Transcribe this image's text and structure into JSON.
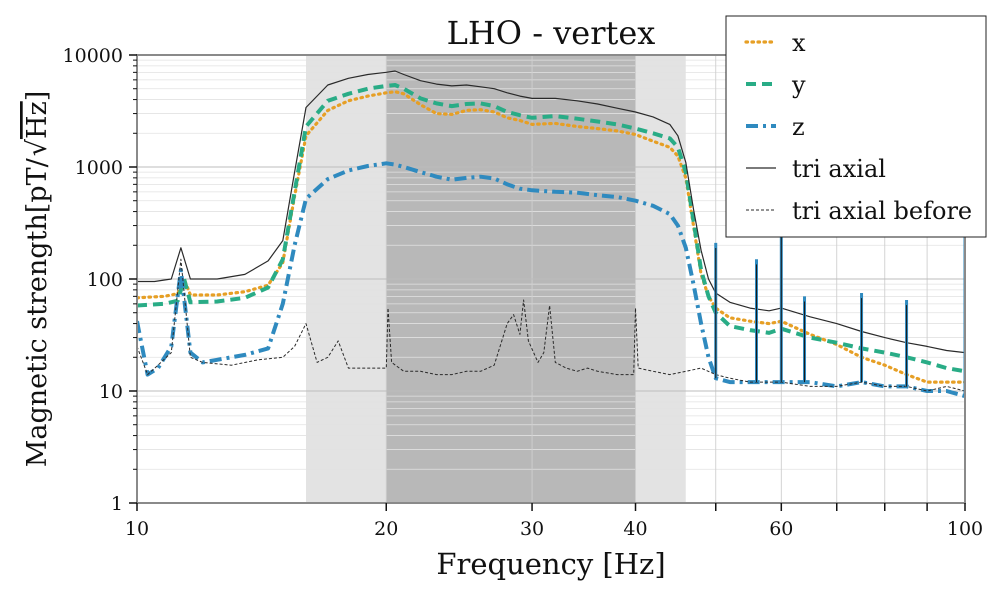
{
  "chart_data": {
    "type": "line",
    "title": "LHO - vertex",
    "xlabel": "Frequency [Hz]",
    "ylabel_prefix": "Magnetic strength[pT/",
    "ylabel_radicand": "Hz",
    "ylabel_suffix": "]",
    "xscale": "log",
    "yscale": "log",
    "xlim": [
      10,
      100
    ],
    "ylim": [
      1,
      10000
    ],
    "x_ticks": [
      {
        "value": 10,
        "label": "10"
      },
      {
        "value": 20,
        "label": "20"
      },
      {
        "value": 30,
        "label": "30"
      },
      {
        "value": 40,
        "label": "40"
      },
      {
        "value": 60,
        "label": "60"
      },
      {
        "value": 100,
        "label": "100"
      }
    ],
    "y_ticks": [
      {
        "value": 1,
        "label": "1"
      },
      {
        "value": 10,
        "label": "10"
      },
      {
        "value": 100,
        "label": "100"
      },
      {
        "value": 1000,
        "label": "1000"
      },
      {
        "value": 10000,
        "label": "10000"
      }
    ],
    "grid": true,
    "legend_position": "top-right",
    "shaded_bands": [
      {
        "from": 16,
        "to": 46,
        "shade": "light",
        "color": "#e3e3e3"
      },
      {
        "from": 20,
        "to": 40,
        "shade": "dark",
        "color": "#b8b8b8"
      }
    ],
    "series": [
      {
        "name": "x",
        "color": "#e69f25",
        "style": "dotted",
        "points": [
          [
            10,
            68
          ],
          [
            10.8,
            70
          ],
          [
            11.2,
            74
          ],
          [
            11.4,
            100
          ],
          [
            11.6,
            72
          ],
          [
            12.5,
            72
          ],
          [
            13.5,
            77
          ],
          [
            14.4,
            88
          ],
          [
            15,
            140
          ],
          [
            15.5,
            550
          ],
          [
            16,
            1900
          ],
          [
            17,
            3200
          ],
          [
            18,
            3900
          ],
          [
            19,
            4300
          ],
          [
            20,
            4600
          ],
          [
            20.5,
            4700
          ],
          [
            21,
            4500
          ],
          [
            22,
            3600
          ],
          [
            23,
            3000
          ],
          [
            24,
            2950
          ],
          [
            25,
            3200
          ],
          [
            26,
            3250
          ],
          [
            27,
            3100
          ],
          [
            28,
            2750
          ],
          [
            29,
            2600
          ],
          [
            30,
            2400
          ],
          [
            32,
            2450
          ],
          [
            34,
            2300
          ],
          [
            36,
            2200
          ],
          [
            38,
            2100
          ],
          [
            40,
            1950
          ],
          [
            42,
            1700
          ],
          [
            44,
            1500
          ],
          [
            45,
            1250
          ],
          [
            46,
            800
          ],
          [
            47,
            300
          ],
          [
            48,
            110
          ],
          [
            49,
            70
          ],
          [
            50,
            55
          ],
          [
            52,
            45
          ],
          [
            55,
            42
          ],
          [
            58,
            40
          ],
          [
            60,
            42
          ],
          [
            65,
            32
          ],
          [
            70,
            26
          ],
          [
            75,
            20
          ],
          [
            80,
            17
          ],
          [
            85,
            14
          ],
          [
            90,
            12
          ],
          [
            95,
            12
          ],
          [
            100,
            12
          ]
        ]
      },
      {
        "name": "y",
        "color": "#29ac86",
        "style": "dashed",
        "points": [
          [
            10,
            58
          ],
          [
            10.8,
            60
          ],
          [
            11.2,
            64
          ],
          [
            11.4,
            100
          ],
          [
            11.6,
            62
          ],
          [
            12.5,
            63
          ],
          [
            13.5,
            68
          ],
          [
            14.4,
            84
          ],
          [
            15,
            150
          ],
          [
            15.5,
            600
          ],
          [
            16,
            2300
          ],
          [
            17,
            3900
          ],
          [
            18,
            4500
          ],
          [
            19,
            5000
          ],
          [
            20,
            5300
          ],
          [
            20.5,
            5400
          ],
          [
            21,
            5000
          ],
          [
            22,
            4100
          ],
          [
            23,
            3700
          ],
          [
            24,
            3500
          ],
          [
            25,
            3650
          ],
          [
            26,
            3700
          ],
          [
            27,
            3500
          ],
          [
            28,
            3100
          ],
          [
            29,
            2900
          ],
          [
            30,
            2750
          ],
          [
            32,
            2850
          ],
          [
            34,
            2700
          ],
          [
            36,
            2550
          ],
          [
            38,
            2400
          ],
          [
            40,
            2200
          ],
          [
            42,
            2000
          ],
          [
            44,
            1800
          ],
          [
            45,
            1500
          ],
          [
            46,
            900
          ],
          [
            47,
            330
          ],
          [
            48,
            120
          ],
          [
            49,
            70
          ],
          [
            50,
            50
          ],
          [
            52,
            38
          ],
          [
            55,
            35
          ],
          [
            58,
            33
          ],
          [
            60,
            36
          ],
          [
            65,
            30
          ],
          [
            70,
            27
          ],
          [
            75,
            24
          ],
          [
            80,
            22
          ],
          [
            85,
            20
          ],
          [
            90,
            18
          ],
          [
            95,
            16
          ],
          [
            100,
            15
          ]
        ]
      },
      {
        "name": "z",
        "color": "#2f8abf",
        "style": "dashdot",
        "points": [
          [
            10,
            42
          ],
          [
            10.3,
            14
          ],
          [
            10.6,
            16
          ],
          [
            11,
            25
          ],
          [
            11.3,
            120
          ],
          [
            11.6,
            22
          ],
          [
            12,
            18
          ],
          [
            12.5,
            19
          ],
          [
            13.5,
            21
          ],
          [
            14.4,
            24
          ],
          [
            15,
            60
          ],
          [
            15.5,
            200
          ],
          [
            16,
            520
          ],
          [
            17,
            780
          ],
          [
            18,
            930
          ],
          [
            19,
            1020
          ],
          [
            20,
            1080
          ],
          [
            20.5,
            1050
          ],
          [
            21,
            1000
          ],
          [
            22,
            900
          ],
          [
            23,
            820
          ],
          [
            24,
            770
          ],
          [
            25,
            800
          ],
          [
            26,
            820
          ],
          [
            27,
            790
          ],
          [
            28,
            700
          ],
          [
            29,
            640
          ],
          [
            30,
            620
          ],
          [
            32,
            600
          ],
          [
            34,
            590
          ],
          [
            36,
            560
          ],
          [
            38,
            540
          ],
          [
            40,
            500
          ],
          [
            42,
            450
          ],
          [
            44,
            380
          ],
          [
            45,
            300
          ],
          [
            46,
            190
          ],
          [
            47,
            90
          ],
          [
            48,
            40
          ],
          [
            49,
            20
          ],
          [
            50,
            13
          ],
          [
            52,
            12
          ],
          [
            55,
            12
          ],
          [
            60,
            12
          ],
          [
            65,
            12
          ],
          [
            70,
            11
          ],
          [
            75,
            12
          ],
          [
            80,
            11
          ],
          [
            85,
            11
          ],
          [
            90,
            10
          ],
          [
            95,
            10
          ],
          [
            100,
            9
          ]
        ]
      },
      {
        "name": "tri axial",
        "color": "#2a2a2a",
        "style": "solid",
        "points": [
          [
            10,
            95
          ],
          [
            10.5,
            95
          ],
          [
            11,
            100
          ],
          [
            11.3,
            190
          ],
          [
            11.6,
            100
          ],
          [
            12.5,
            100
          ],
          [
            13.5,
            110
          ],
          [
            14.4,
            145
          ],
          [
            15,
            220
          ],
          [
            15.5,
            900
          ],
          [
            16,
            3400
          ],
          [
            17,
            5400
          ],
          [
            18,
            6200
          ],
          [
            19,
            6700
          ],
          [
            20,
            7000
          ],
          [
            20.5,
            7200
          ],
          [
            21,
            6700
          ],
          [
            22,
            5900
          ],
          [
            23,
            5500
          ],
          [
            24,
            5300
          ],
          [
            25,
            5400
          ],
          [
            26,
            5200
          ],
          [
            27,
            5000
          ],
          [
            28,
            4600
          ],
          [
            29,
            4300
          ],
          [
            30,
            4100
          ],
          [
            32,
            4100
          ],
          [
            34,
            3900
          ],
          [
            36,
            3650
          ],
          [
            38,
            3350
          ],
          [
            40,
            3100
          ],
          [
            42,
            2800
          ],
          [
            44,
            2400
          ],
          [
            45,
            1900
          ],
          [
            46,
            1100
          ],
          [
            47,
            420
          ],
          [
            48,
            180
          ],
          [
            49,
            100
          ],
          [
            50,
            75
          ],
          [
            52,
            62
          ],
          [
            55,
            55
          ],
          [
            58,
            52
          ],
          [
            60,
            55
          ],
          [
            65,
            46
          ],
          [
            70,
            40
          ],
          [
            75,
            34
          ],
          [
            80,
            30
          ],
          [
            85,
            27
          ],
          [
            90,
            25
          ],
          [
            95,
            23
          ],
          [
            100,
            22
          ]
        ]
      },
      {
        "name": "tri axial before",
        "color": "#2a2a2a",
        "style": "thin-dashed",
        "points": [
          [
            10,
            25
          ],
          [
            10.3,
            14
          ],
          [
            10.6,
            17
          ],
          [
            11,
            22
          ],
          [
            11.3,
            150
          ],
          [
            11.6,
            20
          ],
          [
            12,
            18
          ],
          [
            13,
            17
          ],
          [
            14,
            19
          ],
          [
            15,
            20
          ],
          [
            15.5,
            25
          ],
          [
            16,
            40
          ],
          [
            16.5,
            18
          ],
          [
            17,
            20
          ],
          [
            17.5,
            28
          ],
          [
            18,
            16
          ],
          [
            19,
            16
          ],
          [
            20,
            16
          ],
          [
            20.1,
            55
          ],
          [
            20.3,
            18
          ],
          [
            21,
            15
          ],
          [
            22,
            15
          ],
          [
            23,
            14
          ],
          [
            24,
            14
          ],
          [
            25,
            15
          ],
          [
            26,
            15
          ],
          [
            27,
            17
          ],
          [
            28,
            40
          ],
          [
            28.5,
            48
          ],
          [
            29,
            32
          ],
          [
            29.3,
            65
          ],
          [
            29.7,
            28
          ],
          [
            30.5,
            18
          ],
          [
            31,
            22
          ],
          [
            31.5,
            58
          ],
          [
            32,
            18
          ],
          [
            33,
            16
          ],
          [
            34,
            15
          ],
          [
            35,
            16
          ],
          [
            36,
            15
          ],
          [
            38,
            14
          ],
          [
            39.8,
            14
          ],
          [
            40,
            55
          ],
          [
            40.3,
            16
          ],
          [
            42,
            15
          ],
          [
            44,
            14
          ],
          [
            46,
            15
          ],
          [
            48,
            16
          ],
          [
            50,
            14
          ],
          [
            52,
            13
          ],
          [
            55,
            12
          ],
          [
            60,
            12
          ],
          [
            65,
            11
          ],
          [
            70,
            11
          ],
          [
            75,
            12
          ],
          [
            80,
            11
          ],
          [
            85,
            11
          ],
          [
            90,
            10
          ],
          [
            95,
            11
          ],
          [
            100,
            10
          ]
        ]
      }
    ],
    "peaks": [
      {
        "f": 50,
        "amp": 210
      },
      {
        "f": 56,
        "amp": 150
      },
      {
        "f": 60,
        "amp": 3200
      },
      {
        "f": 64,
        "amp": 70
      },
      {
        "f": 75,
        "amp": 75
      },
      {
        "f": 85,
        "amp": 65
      },
      {
        "f": 100,
        "amp": 300
      }
    ],
    "legend": [
      {
        "label": "x",
        "color": "#e69f25",
        "style": "dotted"
      },
      {
        "label": "y",
        "color": "#29ac86",
        "style": "dashed"
      },
      {
        "label": "z",
        "color": "#2f8abf",
        "style": "dashdot"
      },
      {
        "label": "tri axial",
        "color": "#2a2a2a",
        "style": "solid"
      },
      {
        "label": "tri axial before",
        "color": "#2a2a2a",
        "style": "thin-dashed"
      }
    ]
  }
}
